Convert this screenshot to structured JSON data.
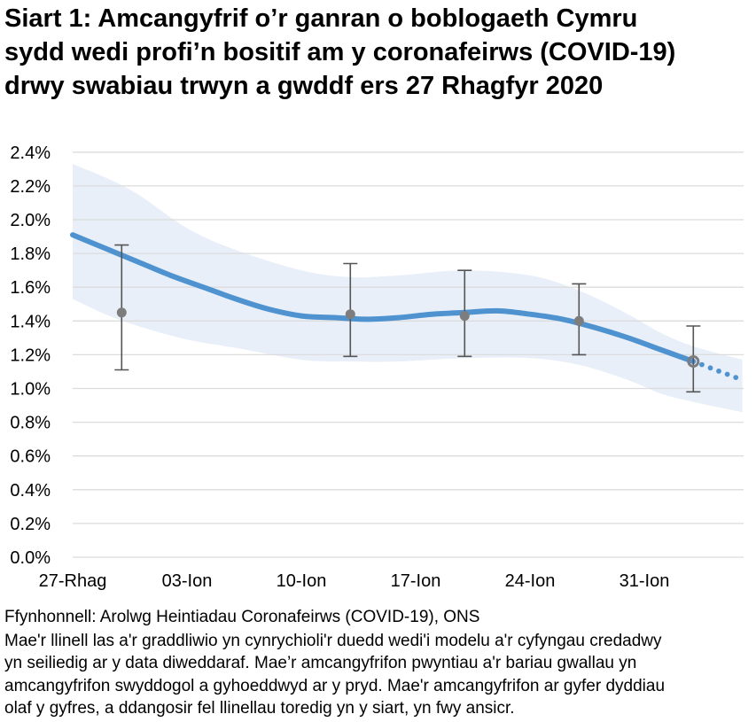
{
  "header": {
    "title_lines": [
      "Siart 1: Amcangyfrif o’r ganran o boblogaeth Cymru",
      "sydd wedi profi’n bositif am y coronafeirws (COVID-19)",
      "drwy swabiau trwyn a gwddf ers 27 Rhagfyr 2020"
    ]
  },
  "chart_data": {
    "type": "line",
    "title": "Siart 1: Amcangyfrif o’r ganran o boblogaeth Cymru sydd wedi profi’n bositif am y coronafeirws (COVID-19) drwy swabiau trwyn a gwddf ers 27 Rhagfyr 2020",
    "grid": true,
    "legend": false,
    "x_axis": {
      "unit": "days since 27 Dec 2020",
      "range_days": [
        0,
        41
      ],
      "tick_days": [
        0,
        7,
        14,
        21,
        28,
        35
      ],
      "tick_labels": [
        "27-Rhag",
        "03-Ion",
        "10-Ion",
        "17-Ion",
        "24-Ion",
        "31-Ion"
      ]
    },
    "y_axis": {
      "min": 0,
      "max": 2.4,
      "step": 0.2,
      "tick_labels": [
        "0.0%",
        "0.2%",
        "0.4%",
        "0.6%",
        "0.8%",
        "1.0%",
        "1.2%",
        "1.4%",
        "1.6%",
        "1.8%",
        "2.0%",
        "2.2%",
        "2.4%"
      ]
    },
    "band": {
      "name": "cyfyngau credadwy (credible interval band)",
      "days": [
        0,
        2,
        4,
        7,
        10,
        14,
        17,
        20,
        24,
        28,
        31,
        34,
        36,
        38,
        41
      ],
      "upper": [
        2.33,
        2.25,
        2.15,
        1.95,
        1.82,
        1.7,
        1.66,
        1.67,
        1.7,
        1.67,
        1.58,
        1.44,
        1.33,
        1.25,
        1.17
      ],
      "lower": [
        1.53,
        1.44,
        1.37,
        1.29,
        1.24,
        1.17,
        1.16,
        1.16,
        1.18,
        1.18,
        1.14,
        1.05,
        0.97,
        0.92,
        0.86
      ]
    },
    "trend_line": {
      "name": "duedd wedi'i modelu (modelled trend)",
      "days": [
        0,
        2,
        4,
        6,
        8,
        10,
        12,
        14,
        16,
        18,
        20,
        22,
        24,
        26,
        28,
        30,
        32,
        34,
        36,
        38
      ],
      "values": [
        1.91,
        1.83,
        1.75,
        1.67,
        1.6,
        1.53,
        1.47,
        1.43,
        1.42,
        1.41,
        1.42,
        1.44,
        1.45,
        1.46,
        1.44,
        1.41,
        1.36,
        1.3,
        1.23,
        1.16
      ]
    },
    "dotted_tail": {
      "name": "llinellau toredig (dotted, more uncertain)",
      "days": [
        38,
        40.6
      ],
      "values": [
        1.16,
        1.065
      ],
      "dots": 5
    },
    "estimates": [
      {
        "day": 3,
        "value": 1.45,
        "lower": 1.11,
        "upper": 1.85,
        "style": "solid"
      },
      {
        "day": 17,
        "value": 1.44,
        "lower": 1.19,
        "upper": 1.74,
        "style": "solid"
      },
      {
        "day": 24,
        "value": 1.43,
        "lower": 1.19,
        "upper": 1.7,
        "style": "solid"
      },
      {
        "day": 31,
        "value": 1.4,
        "lower": 1.2,
        "upper": 1.62,
        "style": "solid"
      },
      {
        "day": 38,
        "value": 1.16,
        "lower": 0.98,
        "upper": 1.37,
        "style": "open"
      }
    ],
    "colors": {
      "trend": "#4f92d0",
      "band": "#e8eff8",
      "gridline": "#dcdcdc",
      "error_bar": "#555555",
      "point": "#7d7d7d",
      "text": "#000000"
    }
  },
  "footer": {
    "source": "Ffynhonnell: Arolwg Heintiadau Coronafeirws (COVID-19), ONS",
    "note_lines": [
      "Mae'r llinell las a'r graddliwio yn cynrychioli'r duedd wedi'i modelu a'r cyfyngau credadwy",
      "yn seiliedig ar y data diweddaraf. Mae’r amcangyfrifon pwyntiau a'r bariau gwallau yn",
      "amcangyfrifon swyddogol a gyhoeddwyd ar y pryd. Mae'r amcangyfrifon ar gyfer dyddiau",
      "olaf y gyfres, a ddangosir fel llinellau toredig yn y siart, yn fwy ansicr."
    ]
  }
}
